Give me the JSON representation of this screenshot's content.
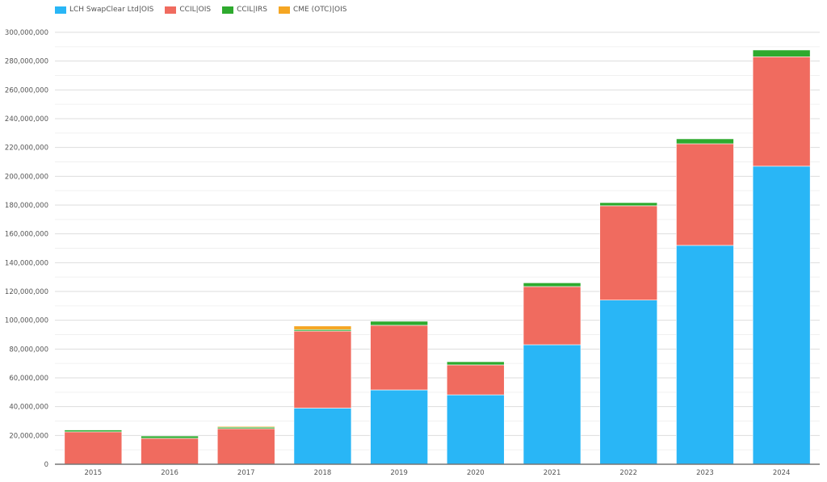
{
  "chart_data": {
    "type": "bar",
    "stacked": true,
    "categories": [
      "2015",
      "2016",
      "2017",
      "2018",
      "2019",
      "2020",
      "2021",
      "2022",
      "2023",
      "2024"
    ],
    "series": [
      {
        "name": "LCH SwapClear Ltd|OIS",
        "color": "#29b6f6",
        "values": [
          0,
          0,
          0,
          39000000,
          51600000,
          48200000,
          83000000,
          114000000,
          152000000,
          207000000
        ]
      },
      {
        "name": "CCIL|OIS",
        "color": "#f06b5f",
        "values": [
          22500000,
          18000000,
          24700000,
          53500000,
          44900000,
          20800000,
          40400000,
          65500000,
          70600000,
          76000000
        ]
      },
      {
        "name": "CCIL|IRS",
        "color": "#2eaa2e",
        "values": [
          1300000,
          1600000,
          1000000,
          1000000,
          2800000,
          2200000,
          2600000,
          2200000,
          3400000,
          4700000
        ]
      },
      {
        "name": "CME (OTC)|OIS",
        "color": "#f5a623",
        "values": [
          0,
          0,
          600000,
          2500000,
          0,
          0,
          0,
          0,
          0,
          0
        ]
      }
    ],
    "yticks": [
      "0",
      "20,000,000",
      "40,000,000",
      "60,000,000",
      "80,000,000",
      "100,000,000",
      "120,000,000",
      "140,000,000",
      "160,000,000",
      "180,000,000",
      "200,000,000",
      "220,000,000",
      "240,000,000",
      "260,000,000",
      "280,000,000",
      "300,000,000"
    ],
    "ylim": [
      0,
      300000000
    ],
    "grid": true,
    "legend": "top-left",
    "title": "",
    "xlabel": "",
    "ylabel": ""
  }
}
